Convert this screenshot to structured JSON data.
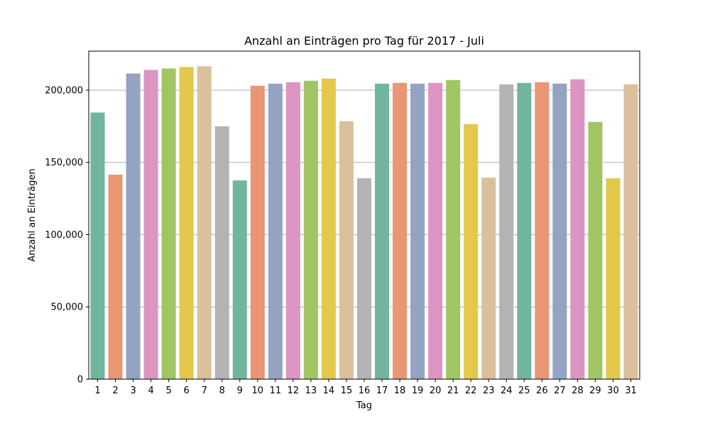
{
  "chart_data": {
    "type": "bar",
    "title": "Anzahl an Einträgen pro Tag für 2017 - Juli",
    "xlabel": "Tag",
    "ylabel": "Anzahl an Einträgen",
    "categories": [
      "1",
      "2",
      "3",
      "4",
      "5",
      "6",
      "7",
      "8",
      "9",
      "10",
      "11",
      "12",
      "13",
      "14",
      "15",
      "16",
      "17",
      "18",
      "19",
      "20",
      "21",
      "22",
      "23",
      "24",
      "25",
      "26",
      "27",
      "28",
      "29",
      "30",
      "31"
    ],
    "values": [
      184500,
      141500,
      211500,
      214000,
      215000,
      216000,
      216500,
      175000,
      137500,
      203000,
      204500,
      205500,
      206500,
      208000,
      178500,
      139000,
      204500,
      205000,
      204500,
      205000,
      207000,
      176500,
      139500,
      204000,
      205000,
      205500,
      204500,
      207500,
      178000,
      139000,
      204000
    ],
    "ylim": [
      0,
      227000
    ],
    "yticks": [
      0,
      50000,
      100000,
      150000,
      200000
    ],
    "ytick_labels": [
      "0",
      "50,000",
      "100,000",
      "150,000",
      "200,000"
    ],
    "grid": "horizontal",
    "palette": [
      "#72b59e",
      "#e99674",
      "#95a3c3",
      "#dc95c1",
      "#a2c563",
      "#e3c84b",
      "#dac19c",
      "#b3b3b3"
    ]
  }
}
